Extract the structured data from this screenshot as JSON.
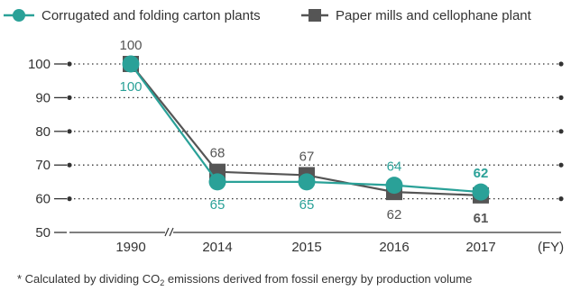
{
  "chart_data": {
    "type": "line",
    "title": "",
    "xlabel": "",
    "ylabel": "",
    "x": [
      "1990",
      "2014",
      "2015",
      "2016",
      "2017"
    ],
    "x_unit": "(FY)",
    "ylim": [
      50,
      100
    ],
    "yticks": [
      50,
      60,
      70,
      80,
      90,
      100
    ],
    "grid": "dotted horizontal",
    "axis_break": "between 1990 and 2014",
    "legend": "top",
    "series": [
      {
        "name": "Corrugated and folding carton plants",
        "values": [
          100,
          65,
          65,
          64,
          62
        ],
        "labels": [
          "100",
          "65",
          "65",
          "64",
          "62"
        ],
        "color": "#2aa198",
        "marker": "circle"
      },
      {
        "name": "Paper mills and cellophane plant",
        "values": [
          100,
          68,
          67,
          62,
          61
        ],
        "labels": [
          "100",
          "68",
          "67",
          "62",
          "61"
        ],
        "color": "#555555",
        "marker": "square"
      }
    ]
  },
  "footnote": {
    "pre": "* Calculated by dividing CO",
    "sub": "2",
    "post": " emissions derived from fossil energy by production volume"
  }
}
